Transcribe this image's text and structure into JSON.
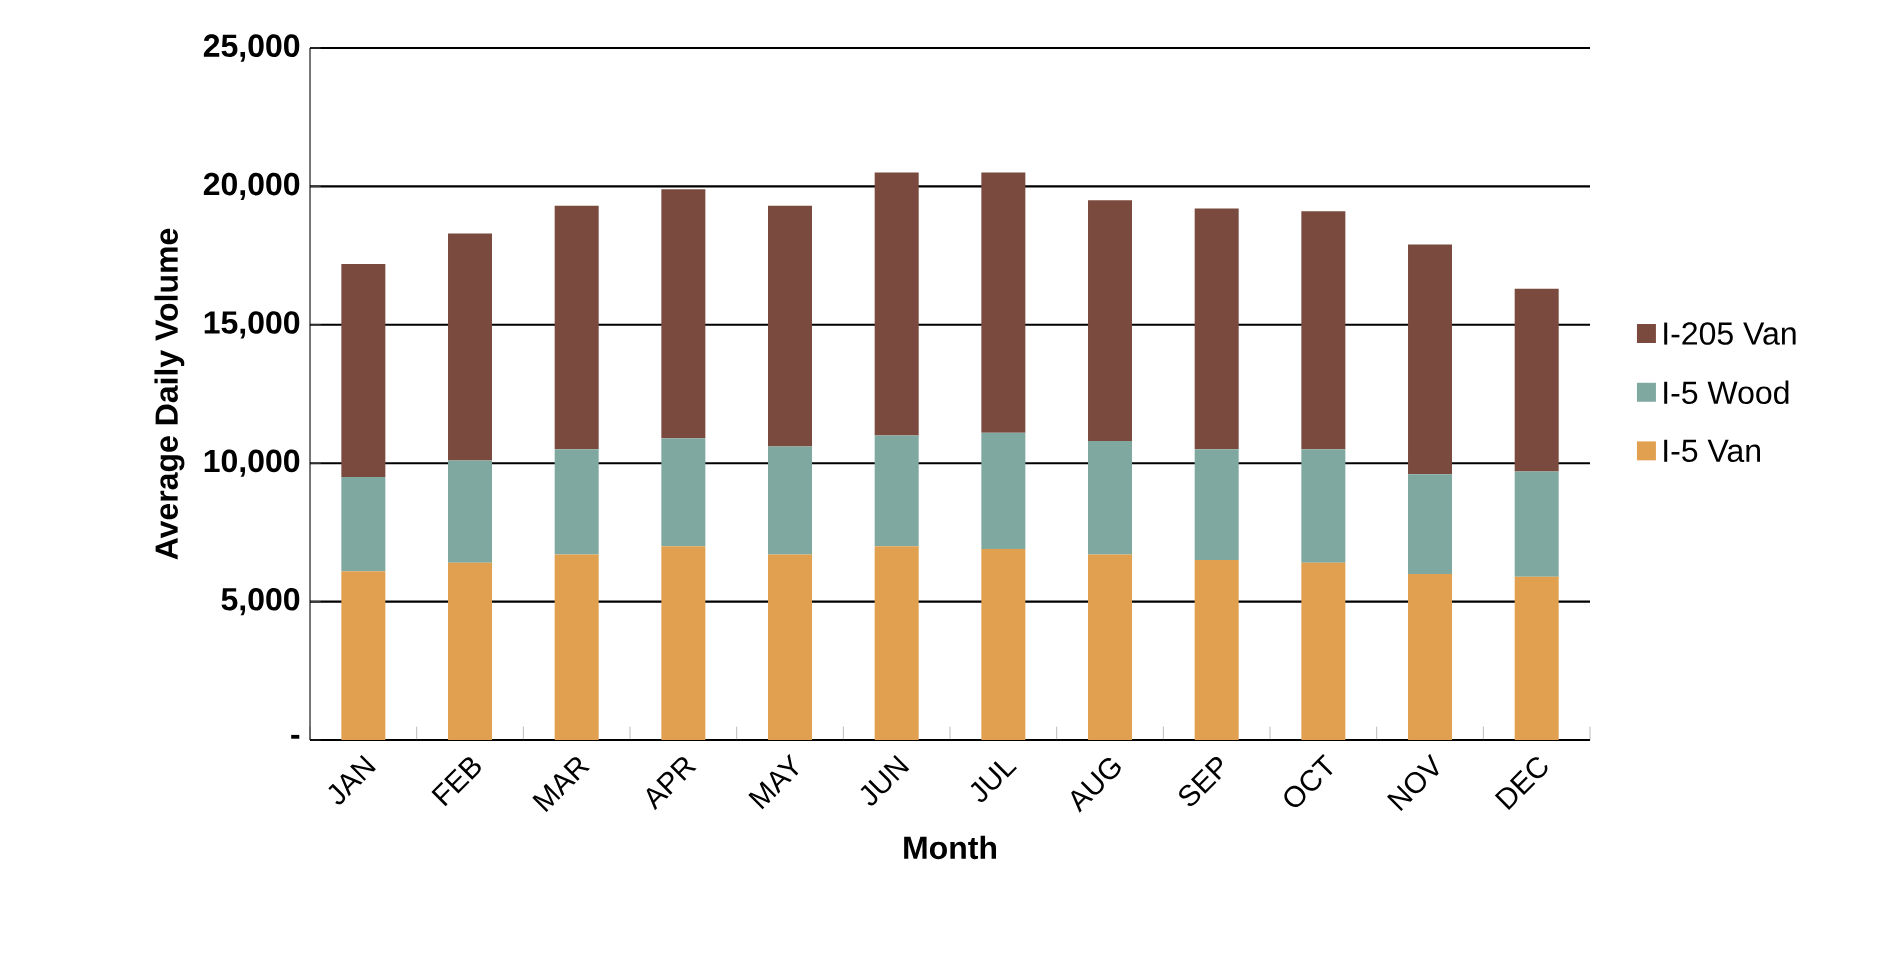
{
  "chart_data": {
    "type": "bar",
    "stacked": true,
    "xlabel": "Month",
    "ylabel": "Average Daily Volume",
    "categories": [
      "JAN",
      "FEB",
      "MAR",
      "APR",
      "MAY",
      "JUN",
      "JUL",
      "AUG",
      "SEP",
      "OCT",
      "NOV",
      "DEC"
    ],
    "series": [
      {
        "name": "I-5 Van",
        "color": "#e0a050",
        "values": [
          6100,
          6400,
          6700,
          7000,
          6700,
          7000,
          6900,
          6700,
          6500,
          6400,
          6000,
          5900
        ]
      },
      {
        "name": "I-5 Wood",
        "color": "#7fa8a0",
        "values": [
          3400,
          3700,
          3800,
          3900,
          3900,
          4000,
          4200,
          4100,
          4000,
          4100,
          3600,
          3800
        ]
      },
      {
        "name": "I-205 Van",
        "color": "#7a4a3e",
        "values": [
          7700,
          8200,
          8800,
          9000,
          8700,
          9500,
          9400,
          8700,
          8700,
          8600,
          8300,
          6600
        ]
      }
    ],
    "ylim": [
      0,
      25000
    ],
    "yticks": [
      {
        "value": 0,
        "label": "-"
      },
      {
        "value": 5000,
        "label": "5,000"
      },
      {
        "value": 10000,
        "label": "10,000"
      },
      {
        "value": 15000,
        "label": "15,000"
      },
      {
        "value": 20000,
        "label": "20,000"
      },
      {
        "value": 25000,
        "label": "25,000"
      }
    ],
    "grid": "y",
    "legend": "right"
  }
}
